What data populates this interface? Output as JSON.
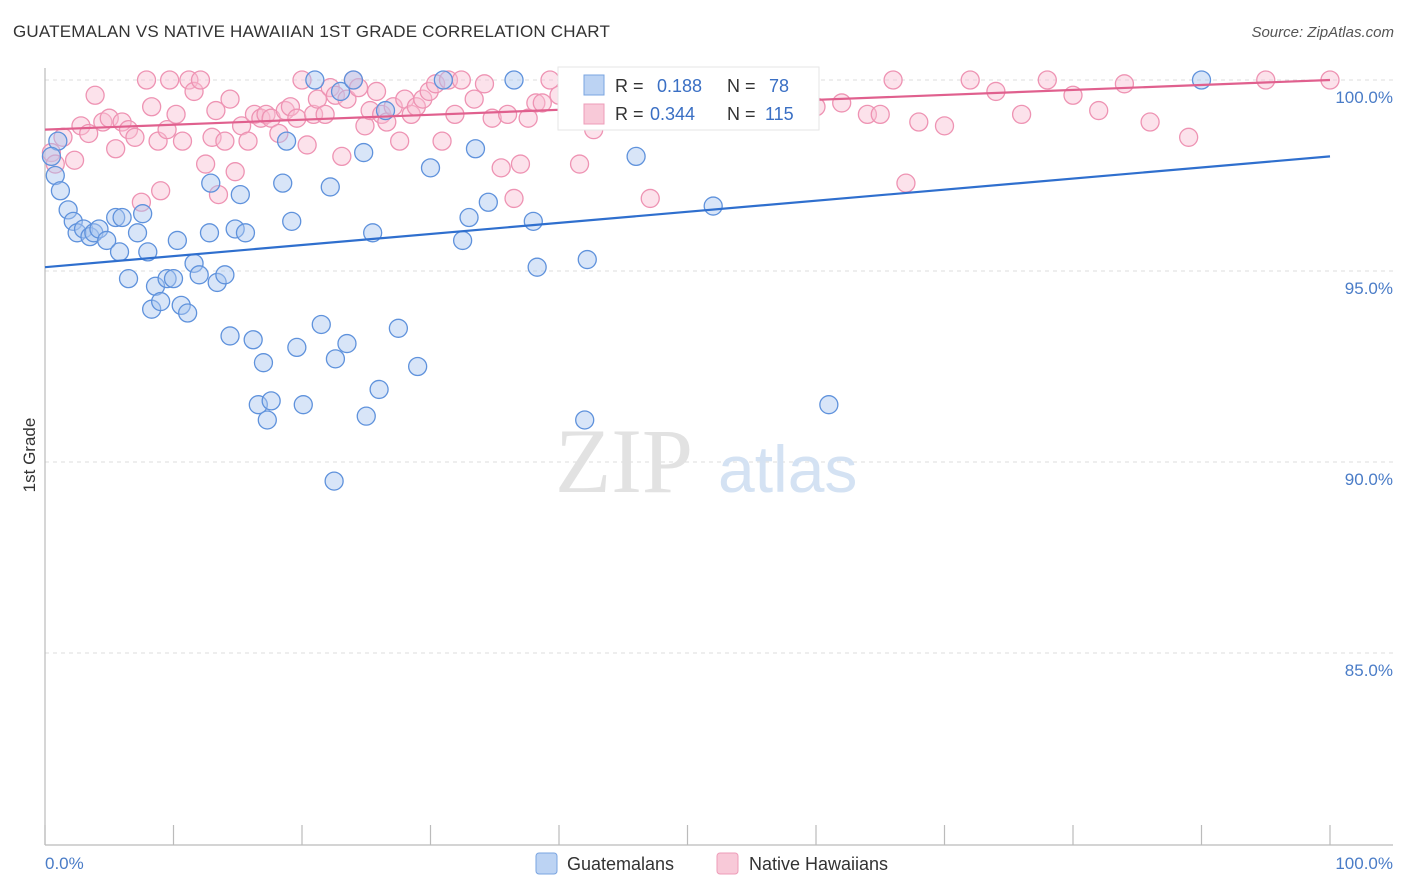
{
  "chart_data": {
    "type": "scatter",
    "title": "GUATEMALAN VS NATIVE HAWAIIAN 1ST GRADE CORRELATION CHART",
    "source": "Source: ZipAtlas.com",
    "ylabel": "1st Grade",
    "xlim": [
      0,
      100
    ],
    "ylim": [
      80.5,
      100.5
    ],
    "x_tick_labels": [
      "0.0%",
      "100.0%"
    ],
    "y_ticks": [
      100,
      95,
      90,
      85
    ],
    "y_tick_labels": [
      "100.0%",
      "95.0%",
      "90.0%",
      "85.0%"
    ],
    "grid": true,
    "legend_position": "top-center",
    "watermark": "ZIPatlas",
    "colors": {
      "guatemalans": "#6f9fe0",
      "native_hawaiians": "#f29ab6",
      "blue_line": "#2f6fce",
      "pink_line": "#e0608e"
    },
    "series": [
      {
        "name": "Guatemalans",
        "r_label": "R =",
        "r_value": "0.188",
        "n_label": "N =",
        "n_value": "78",
        "trend": {
          "x": [
            0,
            100
          ],
          "y": [
            95.1,
            98.0
          ]
        },
        "points": [
          [
            0.8,
            97.5
          ],
          [
            1.2,
            97.1
          ],
          [
            1.0,
            98.4
          ],
          [
            1.8,
            96.6
          ],
          [
            2.2,
            96.3
          ],
          [
            2.5,
            96.0
          ],
          [
            3.0,
            96.1
          ],
          [
            3.5,
            95.9
          ],
          [
            3.8,
            96.0
          ],
          [
            4.2,
            96.1
          ],
          [
            4.8,
            95.8
          ],
          [
            5.5,
            96.4
          ],
          [
            6.0,
            96.4
          ],
          [
            5.8,
            95.5
          ],
          [
            6.5,
            94.8
          ],
          [
            7.2,
            96.0
          ],
          [
            7.6,
            96.5
          ],
          [
            8.0,
            95.5
          ],
          [
            8.3,
            94.0
          ],
          [
            8.6,
            94.6
          ],
          [
            9.0,
            94.2
          ],
          [
            9.5,
            94.8
          ],
          [
            10.0,
            94.8
          ],
          [
            10.3,
            95.8
          ],
          [
            10.6,
            94.1
          ],
          [
            11.1,
            93.9
          ],
          [
            11.6,
            95.2
          ],
          [
            12.0,
            94.9
          ],
          [
            12.8,
            96.0
          ],
          [
            12.9,
            97.3
          ],
          [
            13.4,
            94.7
          ],
          [
            14.0,
            94.9
          ],
          [
            14.4,
            93.3
          ],
          [
            14.8,
            96.1
          ],
          [
            15.2,
            97.0
          ],
          [
            15.6,
            96.0
          ],
          [
            16.2,
            93.2
          ],
          [
            16.6,
            91.5
          ],
          [
            17.0,
            92.6
          ],
          [
            17.3,
            91.1
          ],
          [
            17.6,
            91.6
          ],
          [
            18.5,
            97.3
          ],
          [
            18.8,
            98.4
          ],
          [
            19.2,
            96.3
          ],
          [
            19.6,
            93.0
          ],
          [
            20.1,
            91.5
          ],
          [
            21.0,
            100.0
          ],
          [
            21.5,
            93.6
          ],
          [
            22.2,
            97.2
          ],
          [
            22.6,
            92.7
          ],
          [
            23.0,
            99.7
          ],
          [
            23.5,
            93.1
          ],
          [
            24.0,
            100.0
          ],
          [
            24.8,
            98.1
          ],
          [
            25.0,
            91.2
          ],
          [
            25.5,
            96.0
          ],
          [
            26.0,
            91.9
          ],
          [
            27.5,
            93.5
          ],
          [
            29.0,
            92.5
          ],
          [
            30.0,
            97.7
          ],
          [
            31.0,
            100.0
          ],
          [
            32.5,
            95.8
          ],
          [
            33.0,
            96.4
          ],
          [
            33.5,
            98.2
          ],
          [
            34.5,
            96.8
          ],
          [
            36.5,
            100.0
          ],
          [
            38.0,
            96.3
          ],
          [
            38.3,
            95.1
          ],
          [
            42.0,
            91.1
          ],
          [
            42.2,
            95.3
          ],
          [
            46.0,
            98.0
          ],
          [
            52.0,
            96.7
          ],
          [
            59.0,
            100.0
          ],
          [
            61.0,
            91.5
          ],
          [
            22.5,
            89.5
          ],
          [
            90.0,
            100.0
          ],
          [
            26.5,
            99.2
          ],
          [
            0.5,
            98.0
          ]
        ]
      },
      {
        "name": "Native Hawaiians",
        "r_label": "R =",
        "r_value": "0.344",
        "n_label": "N =",
        "n_value": "115",
        "trend": {
          "x": [
            0,
            100
          ],
          "y": [
            98.7,
            100.0
          ]
        },
        "points": [
          [
            0.5,
            98.1
          ],
          [
            0.8,
            97.8
          ],
          [
            1.4,
            98.5
          ],
          [
            2.3,
            97.9
          ],
          [
            2.8,
            98.8
          ],
          [
            3.4,
            98.6
          ],
          [
            3.9,
            99.6
          ],
          [
            4.5,
            98.9
          ],
          [
            5.0,
            99.0
          ],
          [
            5.5,
            98.2
          ],
          [
            6.0,
            98.9
          ],
          [
            6.5,
            98.7
          ],
          [
            7.0,
            98.5
          ],
          [
            7.5,
            96.8
          ],
          [
            7.9,
            100.0
          ],
          [
            8.3,
            99.3
          ],
          [
            8.8,
            98.4
          ],
          [
            9.0,
            97.1
          ],
          [
            9.5,
            98.7
          ],
          [
            9.7,
            100.0
          ],
          [
            10.2,
            99.1
          ],
          [
            10.7,
            98.4
          ],
          [
            11.2,
            100.0
          ],
          [
            11.6,
            99.7
          ],
          [
            12.1,
            100.0
          ],
          [
            12.5,
            97.8
          ],
          [
            13.0,
            98.5
          ],
          [
            13.5,
            97.0
          ],
          [
            14.0,
            98.4
          ],
          [
            14.4,
            99.5
          ],
          [
            14.8,
            97.6
          ],
          [
            15.3,
            98.8
          ],
          [
            15.8,
            98.4
          ],
          [
            16.3,
            99.1
          ],
          [
            16.8,
            99.0
          ],
          [
            17.2,
            99.1
          ],
          [
            17.6,
            99.0
          ],
          [
            18.2,
            98.6
          ],
          [
            18.7,
            99.2
          ],
          [
            19.1,
            99.3
          ],
          [
            19.6,
            99.0
          ],
          [
            20.0,
            100.0
          ],
          [
            20.4,
            98.3
          ],
          [
            20.9,
            99.1
          ],
          [
            21.2,
            99.5
          ],
          [
            21.8,
            99.1
          ],
          [
            22.2,
            99.8
          ],
          [
            22.6,
            99.6
          ],
          [
            23.1,
            98.0
          ],
          [
            23.5,
            99.5
          ],
          [
            24.0,
            100.0
          ],
          [
            24.4,
            99.8
          ],
          [
            24.9,
            98.8
          ],
          [
            25.3,
            99.2
          ],
          [
            25.8,
            99.7
          ],
          [
            26.2,
            99.1
          ],
          [
            26.6,
            98.9
          ],
          [
            27.1,
            99.3
          ],
          [
            27.6,
            98.4
          ],
          [
            28.0,
            99.5
          ],
          [
            28.5,
            99.1
          ],
          [
            28.9,
            99.3
          ],
          [
            29.4,
            99.5
          ],
          [
            29.9,
            99.7
          ],
          [
            30.4,
            99.9
          ],
          [
            30.9,
            98.4
          ],
          [
            31.4,
            100.0
          ],
          [
            31.9,
            99.1
          ],
          [
            32.4,
            100.0
          ],
          [
            33.4,
            99.5
          ],
          [
            34.2,
            99.9
          ],
          [
            34.8,
            99.0
          ],
          [
            35.5,
            97.7
          ],
          [
            36.0,
            99.1
          ],
          [
            36.5,
            96.9
          ],
          [
            37.0,
            97.8
          ],
          [
            37.6,
            99.0
          ],
          [
            38.2,
            99.4
          ],
          [
            38.7,
            99.4
          ],
          [
            39.3,
            100.0
          ],
          [
            40.0,
            99.6
          ],
          [
            41.0,
            100.0
          ],
          [
            41.6,
            97.8
          ],
          [
            42.0,
            100.0
          ],
          [
            44.1,
            100.0
          ],
          [
            46.0,
            99.3
          ],
          [
            47.1,
            96.9
          ],
          [
            48.0,
            100.0
          ],
          [
            51.0,
            100.0
          ],
          [
            52.0,
            99.9
          ],
          [
            55.0,
            99.7
          ],
          [
            58.0,
            100.0
          ],
          [
            60.0,
            99.3
          ],
          [
            62.0,
            99.4
          ],
          [
            64.0,
            99.1
          ],
          [
            65.0,
            99.1
          ],
          [
            66.0,
            100.0
          ],
          [
            67.0,
            97.3
          ],
          [
            68.0,
            98.9
          ],
          [
            70.0,
            98.8
          ],
          [
            72.0,
            100.0
          ],
          [
            74.0,
            99.7
          ],
          [
            76.0,
            99.1
          ],
          [
            78.0,
            100.0
          ],
          [
            80.0,
            99.6
          ],
          [
            82.0,
            99.2
          ],
          [
            84.0,
            99.9
          ],
          [
            86.0,
            98.9
          ],
          [
            89.0,
            98.5
          ],
          [
            95.0,
            100.0
          ],
          [
            100.0,
            100.0
          ],
          [
            48.5,
            99.3
          ],
          [
            53.0,
            99.0
          ],
          [
            13.3,
            99.2
          ],
          [
            44.5,
            99.5
          ],
          [
            42.7,
            98.7
          ]
        ]
      }
    ]
  },
  "legend": {
    "bottom": [
      "Guatemalans",
      "Native Hawaiians"
    ]
  }
}
